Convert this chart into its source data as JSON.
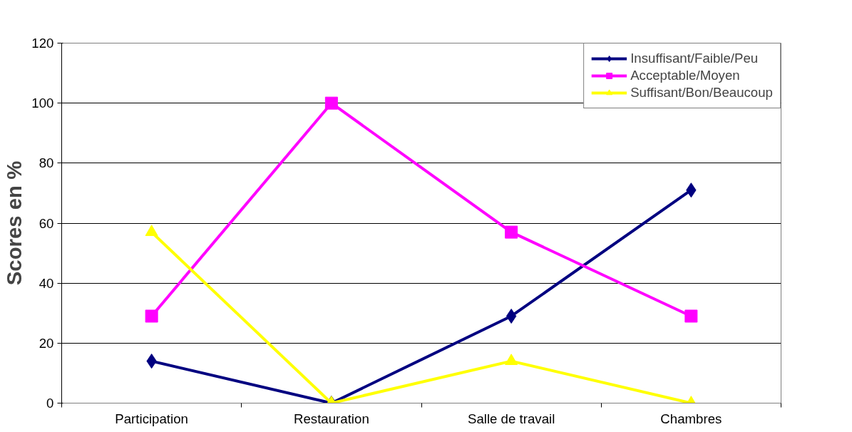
{
  "chart_data": {
    "type": "line",
    "ylabel": "Scores en %",
    "categories": [
      "Participation",
      "Restauration",
      "Salle de travail",
      "Chambres"
    ],
    "ylim": [
      0,
      120
    ],
    "yticks": [
      0,
      20,
      40,
      60,
      80,
      100,
      120
    ],
    "grid": "y",
    "legend": "top right",
    "series": [
      {
        "name": "Insuffisant/Faible/Peu",
        "color": "#000080",
        "marker": "diamond",
        "values": [
          14,
          0,
          29,
          71
        ]
      },
      {
        "name": "Acceptable/Moyen",
        "color": "#ff00ff",
        "marker": "square",
        "values": [
          29,
          100,
          57,
          29
        ]
      },
      {
        "name": "Suffisant/Bon/Beaucoup",
        "color": "#ffff00",
        "marker": "triangle",
        "values": [
          57,
          0,
          14,
          0
        ]
      }
    ]
  }
}
